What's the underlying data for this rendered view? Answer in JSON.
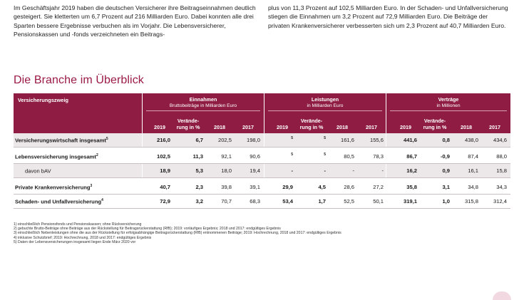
{
  "intro": {
    "left": "Im  Geschäftsjahr 2019 haben die deutschen Versicherer ihre Beitragseinnahmen deutlich gesteigert. Sie kletterten um 6,7 Prozent auf 216 Milliarden Euro. Dabei konnten alle drei Sparten bessere Ergebnisse verbuchen als im Vorjahr. Die Lebensversicherer, Pensionskassen und -fonds verzeichneten ein Beitrags-",
    "right": "plus von 11,3 Prozent auf 102,5 Milliarden Euro. In der Schaden- und Unfallversicherung stiegen die Einnahmen um 3,2 Prozent auf 72,9 Milliarden Euro. Die Beiträge der privaten Krankenversicherer verbesserten sich  um 2,3 Prozent auf 40,7 Milliarden Euro."
  },
  "section_title": "Die Branche im Überblick",
  "table": {
    "row_header": "Versicherungszweig",
    "groups": [
      {
        "title": "Einnahmen",
        "subtitle": "Bruttobeiträge in Milliarden Euro"
      },
      {
        "title": "Leistungen",
        "subtitle": "in Milliarden Euro"
      },
      {
        "title": "Verträge",
        "subtitle": "in Millionen"
      }
    ],
    "col_2019": "2019",
    "col_change_1": "Verände-",
    "col_change_2": "rung in %",
    "col_2018": "2018",
    "col_2017": "2017",
    "rows": [
      {
        "label": "Versicherungswirtschaft insgesamt",
        "sup": "5",
        "e": [
          "216,0",
          "6,7",
          "202,5",
          "198,0"
        ],
        "l": [
          "5",
          "5",
          "161,6",
          "155,6"
        ],
        "v": [
          "441,6",
          "0,8",
          "438,0",
          "434,6"
        ]
      },
      {
        "label": "Lebensversicherung insgesamt",
        "sup": "2",
        "e": [
          "102,5",
          "11,3",
          "92,1",
          "90,6"
        ],
        "l": [
          "5",
          "5",
          "80,5",
          "78,3"
        ],
        "v": [
          "86,7",
          "-0,9",
          "87,4",
          "88,0"
        ]
      },
      {
        "label": "davon bAV",
        "sup": "",
        "e": [
          "18,9",
          "5,3",
          "18,0",
          "19,4"
        ],
        "l": [
          "-",
          "-",
          "-",
          "-"
        ],
        "v": [
          "16,2",
          "0,9",
          "16,1",
          "15,8"
        ]
      },
      {
        "label": "Private Krankenversicherung",
        "sup": "3",
        "e": [
          "40,7",
          "2,3",
          "39,8",
          "39,1"
        ],
        "l": [
          "29,9",
          "4,5",
          "28,6",
          "27,2"
        ],
        "v": [
          "35,8",
          "3,1",
          "34,8",
          "34,3"
        ]
      },
      {
        "label": "Schaden- und Unfallversicherung",
        "sup": "4",
        "e": [
          "72,9",
          "3,2",
          "70,7",
          "68,3"
        ],
        "l": [
          "53,4",
          "1,7",
          "52,5",
          "50,1"
        ],
        "v": [
          "319,1",
          "1,0",
          "315,8",
          "312,4"
        ]
      }
    ]
  },
  "footnotes": [
    "1)  einschließlich Pensionsfonds und Pensionskassen; ohne Rückversicherung",
    "2)  gebuchte Brutto-Beiträge ohne Beiträge aus der Rückstellung für Beitragsrückerstattung (RfB); 2019: vorläufiges Ergebnis; 2018 und 2017: endgültiges Ergebnis",
    "3)  einschließlich Nebenleistungen ohne die aus der Rückstellung für erfolgsabhängige Beitragsrückerstattung (RfB) entnommenen Beiträge; 2019: Hochrechnung, 2018 und 2017: endgültiges Ergebnis",
    "4)  inklusive Schutzbrief; 2019: Hochrechnung, 2018 und 2017: endgültiges Ergebnis",
    "5)  Daten der Lebensversicherungen insgesamt liegen Ende März 2020 vor"
  ],
  "colors": {
    "accent": "#8f1d43",
    "title": "#9b1a44",
    "shade": "#ece7e9"
  }
}
